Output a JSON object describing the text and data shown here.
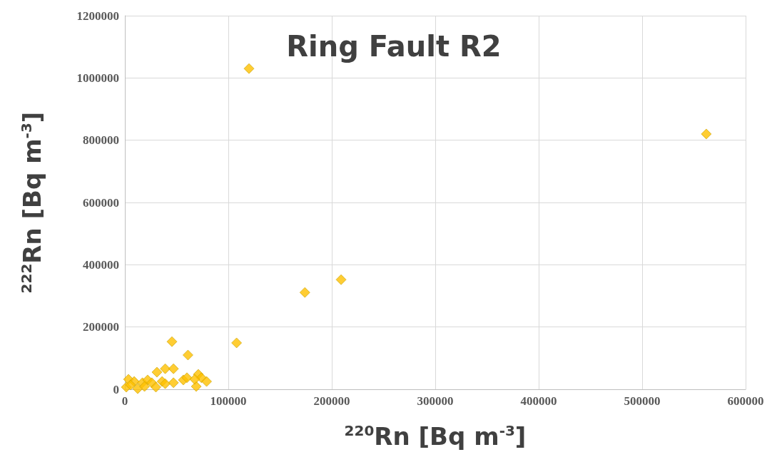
{
  "chart_data": {
    "type": "scatter",
    "title": "Ring Fault R2",
    "xlabel": "$^{220}$Rn [Bq m$^{-3}$]",
    "ylabel": "$^{222}$Rn [Bq m$^{-3}$]",
    "marker": "diamond",
    "grid": true,
    "xlim": [
      0,
      600000
    ],
    "xticks": [
      0,
      100000,
      200000,
      300000,
      400000,
      500000,
      600000
    ],
    "ylim": [
      0,
      1200000
    ],
    "yticks": [
      0,
      200000,
      400000,
      600000,
      800000,
      1000000,
      1200000
    ],
    "series": [
      {
        "color": "#ffc000",
        "x": [
          120000,
          562000,
          209000,
          174000,
          108000,
          45500,
          61000,
          39000,
          47000,
          31000,
          3500,
          9000,
          17000,
          22000,
          26000,
          36000,
          39000,
          47000,
          56500,
          60000,
          71000,
          74000,
          79000,
          69000,
          1400,
          12400,
          30000,
          5500,
          19000,
          67500
        ],
        "values": [
          1030000,
          820000,
          352000,
          311000,
          149000,
          153000,
          110000,
          66000,
          66000,
          55000,
          32000,
          25000,
          21000,
          30000,
          21000,
          25000,
          18000,
          21000,
          30000,
          37000,
          48000,
          37000,
          25000,
          9000,
          7000,
          2000,
          7000,
          14000,
          9000,
          32000
        ]
      }
    ]
  }
}
